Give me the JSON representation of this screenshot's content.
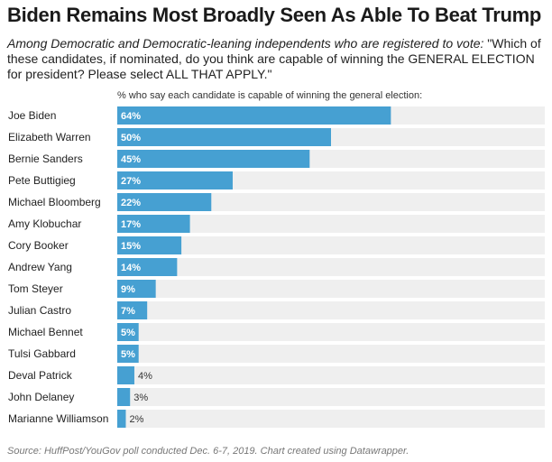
{
  "header": {
    "title": "Biden Remains Most Broadly Seen As Able To Beat Trump",
    "subtitle_lead": "Among Democratic and Democratic-leaning independents who are registered to vote:",
    "subtitle_question": " \"Which of these candidates, if nominated, do you think are capable of winning the GENERAL ELECTION for president? Please select ALL THAT APPLY.\""
  },
  "chart_label": "% who say each candidate is capable of winning the general election:",
  "footer": {
    "source": "Source: HuffPost/YouGov poll conducted Dec. 6-7, 2019. Chart created using Datawrapper."
  },
  "colors": {
    "bar": "#46a0d2",
    "track": "#efefef",
    "label_inside": "#ffffff",
    "label_outside": "#333333"
  },
  "chart_data": {
    "type": "bar",
    "orientation": "horizontal",
    "value_suffix": "%",
    "xlim": [
      0,
      100
    ],
    "categories": [
      "Joe Biden",
      "Elizabeth Warren",
      "Bernie Sanders",
      "Pete Buttigieg",
      "Michael Bloomberg",
      "Amy Klobuchar",
      "Cory Booker",
      "Andrew Yang",
      "Tom Steyer",
      "Julian Castro",
      "Michael Bennet",
      "Tulsi Gabbard",
      "Deval Patrick",
      "John Delaney",
      "Marianne Williamson"
    ],
    "values": [
      64,
      50,
      45,
      27,
      22,
      17,
      15,
      14,
      9,
      7,
      5,
      5,
      4,
      3,
      2
    ],
    "grid": false,
    "legend": "none"
  }
}
